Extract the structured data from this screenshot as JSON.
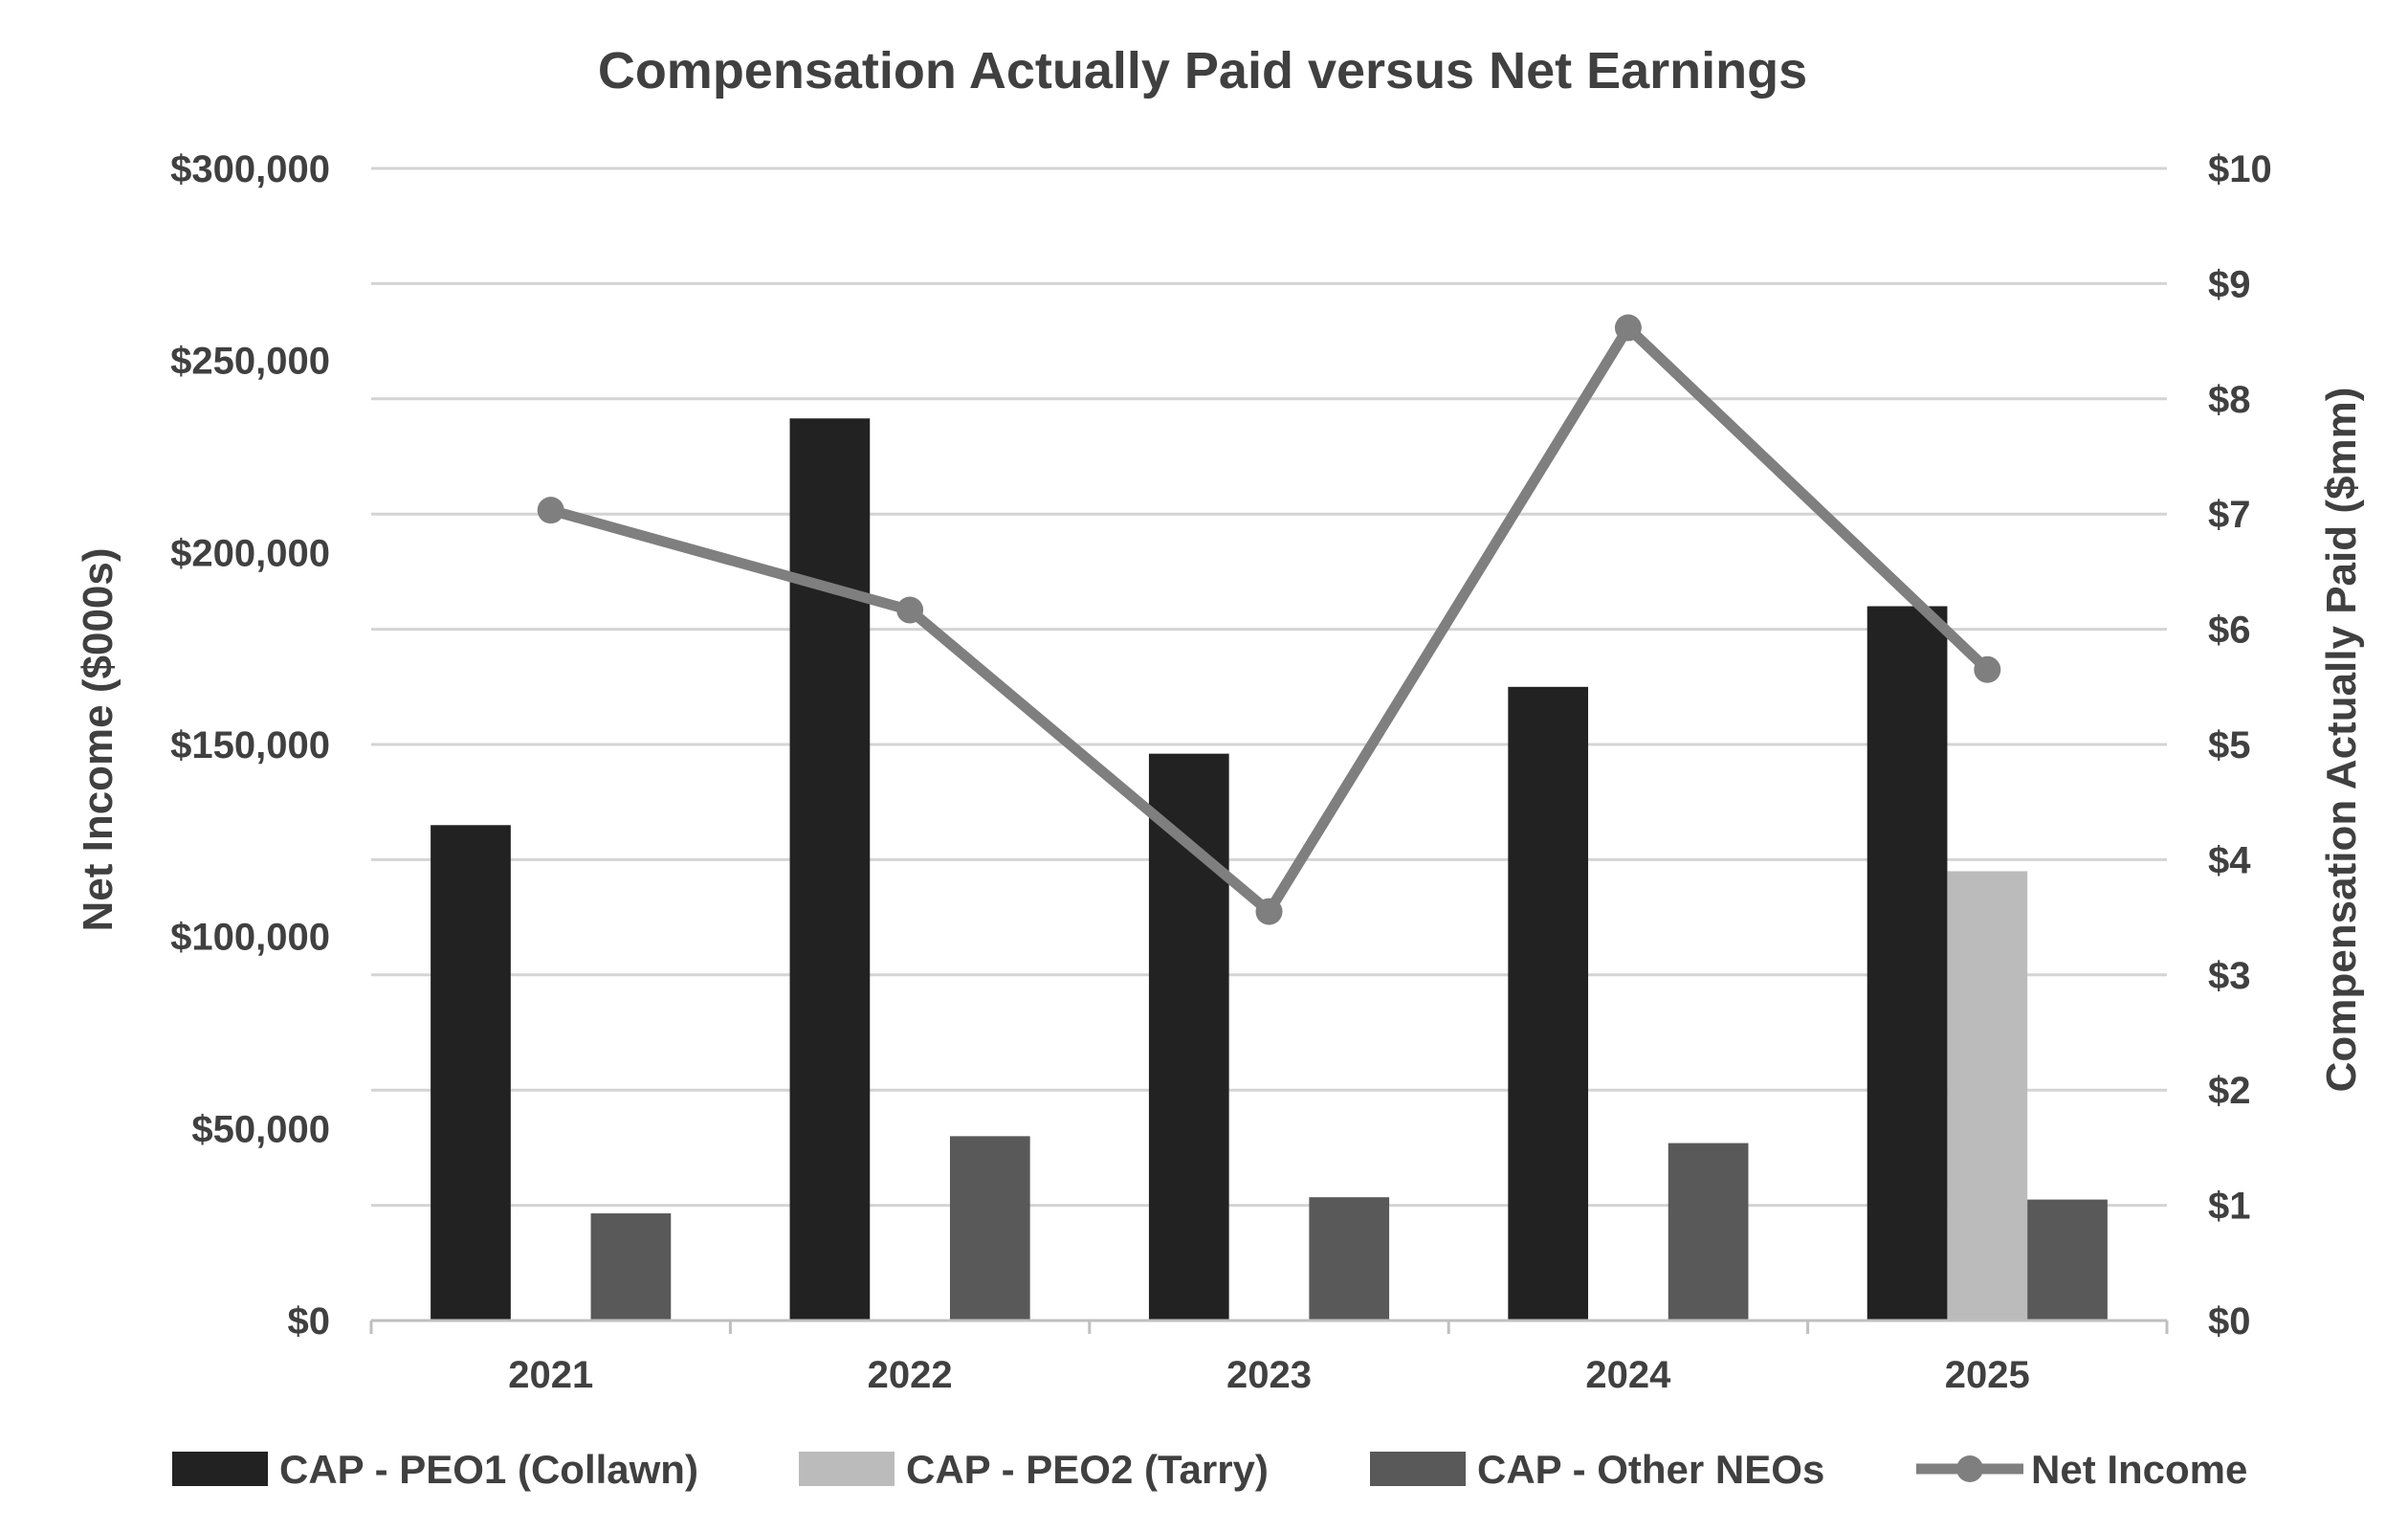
{
  "chart_data": {
    "type": "bar",
    "title": "Compensation Actually Paid versus Net Earnings",
    "ylabel_left": "Net Income ($000s)",
    "ylabel_right": "Compensation Actually Paid ($mm)",
    "categories": [
      "2021",
      "2022",
      "2023",
      "2024",
      "2025"
    ],
    "y_left": {
      "lim": [
        0,
        300000
      ],
      "ticks": [
        0,
        50000,
        100000,
        150000,
        200000,
        250000,
        300000
      ],
      "tick_labels": [
        "$0",
        "$50,000",
        "$100,000",
        "$150,000",
        "$200,000",
        "$250,000",
        "$300,000"
      ]
    },
    "y_right": {
      "lim": [
        0,
        10
      ],
      "ticks": [
        0,
        1,
        2,
        3,
        4,
        5,
        6,
        7,
        8,
        9,
        10
      ],
      "tick_labels": [
        "$0",
        "$1",
        "$2",
        "$3",
        "$4",
        "$5",
        "$6",
        "$7",
        "$8",
        "$9",
        "$10"
      ]
    },
    "grid": true,
    "legend_position": "bottom",
    "series": [
      {
        "name": "CAP - PEO1 (Collawn)",
        "type": "bar",
        "axis": "right",
        "color": "#222222",
        "values": [
          4.3,
          7.83,
          4.92,
          5.5,
          6.2
        ]
      },
      {
        "name": "CAP - PEO2 (Tarry)",
        "type": "bar",
        "axis": "right",
        "color": "#bbbbbb",
        "values": [
          null,
          null,
          null,
          null,
          3.9
        ]
      },
      {
        "name": "CAP - Other NEOs",
        "type": "bar",
        "axis": "right",
        "color": "#595959",
        "values": [
          0.93,
          1.6,
          1.07,
          1.54,
          1.05
        ]
      },
      {
        "name": "Net Income",
        "type": "line",
        "axis": "left",
        "color": "#7f7f7f",
        "values": [
          211000,
          185000,
          106500,
          258500,
          169500
        ]
      }
    ]
  }
}
